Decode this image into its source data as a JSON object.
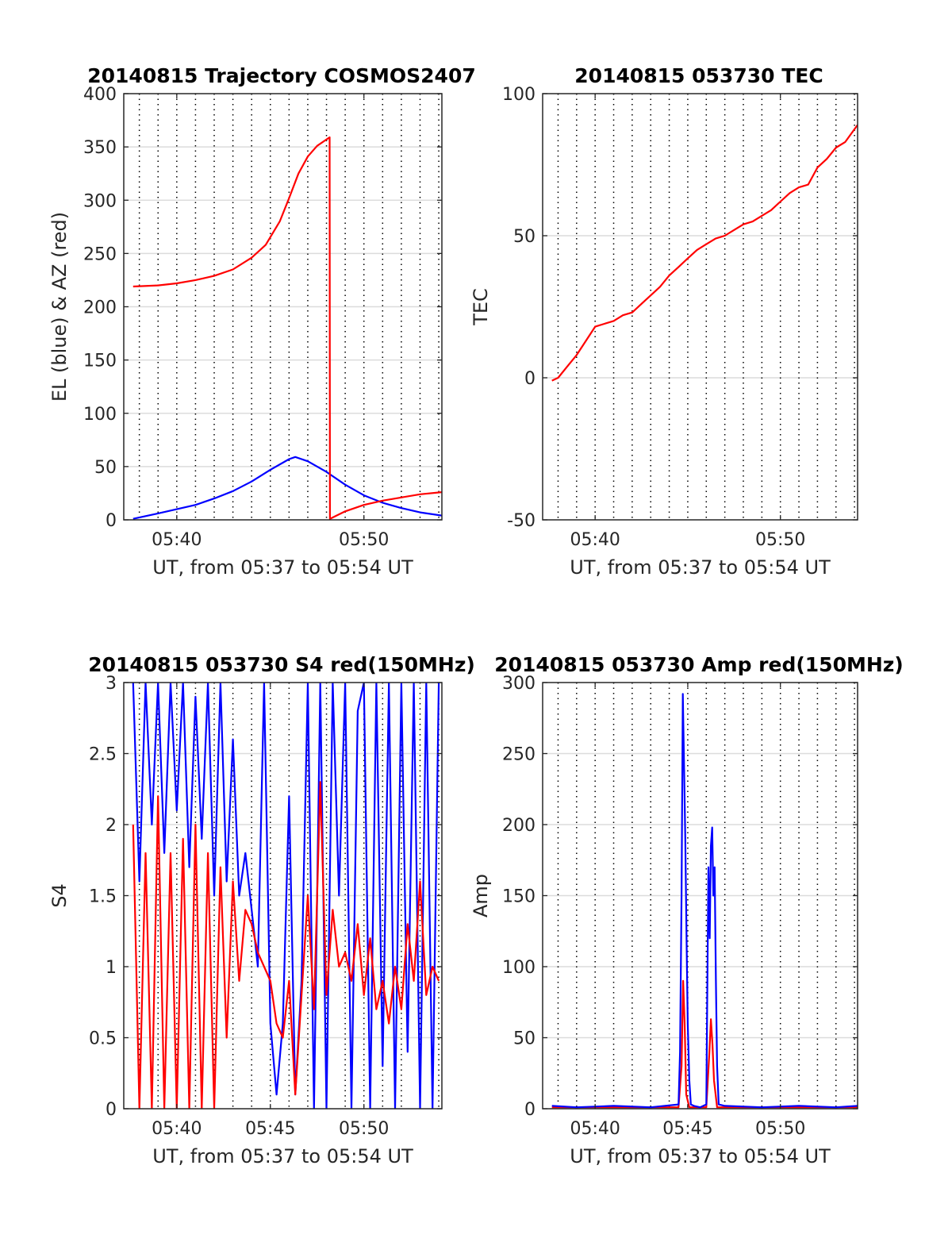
{
  "figure": {
    "background": "#ffffff",
    "colors": {
      "red": "#ff0000",
      "blue": "#0000ff",
      "axis": "#262626",
      "grid": "#dcdcdc",
      "vgrid": "#000000"
    }
  },
  "chart_data": [
    {
      "id": "trajectory",
      "type": "line",
      "title": "20140815 Trajectory COSMOS2407",
      "ylabel": "EL (blue) & AZ (red)",
      "xlabel": "UT, from 05:37 to 05:54 UT",
      "xlim": [
        "05:37:10",
        "05:54:10"
      ],
      "ylim": [
        0,
        400
      ],
      "yticks": [
        0,
        50,
        100,
        150,
        200,
        250,
        300,
        350,
        400
      ],
      "ytick_labels": [
        "0",
        "50",
        "100",
        "150",
        "200",
        "250",
        "300",
        "350",
        "400"
      ],
      "xticks": [
        "05:40",
        "05:50"
      ],
      "xtick_labels": [
        "05:40",
        "05:50"
      ],
      "grid": true,
      "minor_vertical_grid_dotted": true,
      "series": [
        {
          "color": "#0000ff",
          "x": [
            "05:37:40",
            "05:39:00",
            "05:40:00",
            "05:41:00",
            "05:42:00",
            "05:43:00",
            "05:44:00",
            "05:45:00",
            "05:46:00",
            "05:46:20",
            "05:47:00",
            "05:48:00",
            "05:49:00",
            "05:50:00",
            "05:51:00",
            "05:52:00",
            "05:53:00",
            "05:54:10"
          ],
          "y": [
            1,
            6,
            10,
            14,
            20,
            27,
            36,
            47,
            57,
            59,
            55,
            45,
            33,
            23,
            16,
            11,
            7,
            4
          ]
        },
        {
          "color": "#ff0000",
          "x": [
            "05:37:40",
            "05:39:00",
            "05:40:00",
            "05:41:00",
            "05:42:00",
            "05:43:00",
            "05:44:00",
            "05:44:45",
            "05:45:30",
            "05:46:00",
            "05:46:30",
            "05:47:00",
            "05:47:30",
            "05:48:10",
            "05:48:11",
            "05:49:00",
            "05:50:00",
            "05:51:00",
            "05:52:00",
            "05:53:00",
            "05:54:10"
          ],
          "y": [
            219,
            220,
            222,
            225,
            229,
            235,
            246,
            258,
            280,
            302,
            325,
            341,
            351,
            359,
            1,
            8,
            14,
            18,
            21,
            24,
            26
          ]
        }
      ]
    },
    {
      "id": "tec",
      "type": "line",
      "title": "20140815 053730 TEC",
      "ylabel": "TEC",
      "xlabel": "UT, from 05:37 to 05:54 UT",
      "xlim": [
        "05:37:10",
        "05:54:10"
      ],
      "ylim": [
        -50,
        100
      ],
      "yticks": [
        -50,
        0,
        50,
        100
      ],
      "ytick_labels": [
        "-50",
        "0",
        "50",
        "100"
      ],
      "xticks": [
        "05:40",
        "05:50"
      ],
      "xtick_labels": [
        "05:40",
        "05:50"
      ],
      "grid": true,
      "minor_vertical_grid_dotted": true,
      "series": [
        {
          "color": "#ff0000",
          "x": [
            "05:37:40",
            "05:38:00",
            "05:38:30",
            "05:39:00",
            "05:39:30",
            "05:40:00",
            "05:40:30",
            "05:41:00",
            "05:41:30",
            "05:42:00",
            "05:42:30",
            "05:43:00",
            "05:43:30",
            "05:44:00",
            "05:44:30",
            "05:45:00",
            "05:45:30",
            "05:46:00",
            "05:46:30",
            "05:47:00",
            "05:47:30",
            "05:48:00",
            "05:48:30",
            "05:49:00",
            "05:49:30",
            "05:50:00",
            "05:50:30",
            "05:51:00",
            "05:51:30",
            "05:52:00",
            "05:52:30",
            "05:53:00",
            "05:53:30",
            "05:54:10"
          ],
          "y": [
            -1,
            0,
            4,
            8,
            13,
            18,
            19,
            20,
            22,
            23,
            26,
            29,
            32,
            36,
            39,
            42,
            45,
            47,
            49,
            50,
            52,
            54,
            55,
            57,
            59,
            62,
            65,
            67,
            68,
            74,
            77,
            81,
            83,
            89
          ]
        }
      ]
    },
    {
      "id": "s4",
      "type": "line",
      "title": "20140815 053730 S4 red(150MHz)",
      "ylabel": "S4",
      "xlabel": "UT, from 05:37 to 05:54 UT",
      "xlim": [
        "05:37:10",
        "05:54:10"
      ],
      "ylim": [
        0,
        3
      ],
      "yticks": [
        0,
        0.5,
        1,
        1.5,
        2,
        2.5,
        3
      ],
      "ytick_labels": [
        "0",
        "0.5",
        "1",
        "1.5",
        "2",
        "2.5",
        "3"
      ],
      "xticks": [
        "05:40",
        "05:45",
        "05:50"
      ],
      "xtick_labels": [
        "05:40",
        "05:45",
        "05:50"
      ],
      "grid": true,
      "minor_vertical_grid_dotted": true,
      "series": [
        {
          "color": "#0000ff",
          "x": [
            "05:37:40",
            "05:38:00",
            "05:38:20",
            "05:38:40",
            "05:39:00",
            "05:39:20",
            "05:39:40",
            "05:40:00",
            "05:40:20",
            "05:40:40",
            "05:41:00",
            "05:41:20",
            "05:41:40",
            "05:42:00",
            "05:42:20",
            "05:42:40",
            "05:43:00",
            "05:43:20",
            "05:43:40",
            "05:44:00",
            "05:44:20",
            "05:44:40",
            "05:45:00",
            "05:45:20",
            "05:45:40",
            "05:46:00",
            "05:46:20",
            "05:46:40",
            "05:47:00",
            "05:47:20",
            "05:47:40",
            "05:48:00",
            "05:48:20",
            "05:48:40",
            "05:49:00",
            "05:49:20",
            "05:49:40",
            "05:50:00",
            "05:50:20",
            "05:50:40",
            "05:51:00",
            "05:51:20",
            "05:51:40",
            "05:52:00",
            "05:52:20",
            "05:52:40",
            "05:53:00",
            "05:53:20",
            "05:53:40",
            "05:54:00"
          ],
          "y": [
            3.0,
            1.6,
            3.0,
            2.0,
            3.0,
            1.8,
            3.0,
            2.1,
            3.0,
            1.7,
            2.9,
            1.9,
            3.0,
            1.5,
            3.0,
            1.6,
            2.6,
            1.5,
            1.8,
            1.4,
            1.0,
            3.0,
            0.6,
            0.1,
            0.6,
            2.2,
            0.1,
            0.9,
            3.0,
            0.0,
            3.0,
            0.0,
            3.0,
            1.5,
            3.0,
            0.0,
            2.8,
            3.0,
            0.0,
            3.0,
            0.3,
            3.0,
            0.0,
            3.0,
            0.4,
            3.0,
            0.0,
            3.0,
            0.0,
            3.0
          ]
        },
        {
          "color": "#ff0000",
          "x": [
            "05:37:40",
            "05:38:00",
            "05:38:20",
            "05:38:40",
            "05:39:00",
            "05:39:20",
            "05:39:40",
            "05:40:00",
            "05:40:20",
            "05:40:40",
            "05:41:00",
            "05:41:20",
            "05:41:40",
            "05:42:00",
            "05:42:20",
            "05:42:40",
            "05:43:00",
            "05:43:20",
            "05:43:40",
            "05:44:00",
            "05:44:20",
            "05:44:40",
            "05:45:00",
            "05:45:20",
            "05:45:40",
            "05:46:00",
            "05:46:20",
            "05:46:40",
            "05:47:00",
            "05:47:20",
            "05:47:40",
            "05:48:00",
            "05:48:20",
            "05:48:40",
            "05:49:00",
            "05:49:20",
            "05:49:40",
            "05:50:00",
            "05:50:20",
            "05:50:40",
            "05:51:00",
            "05:51:20",
            "05:51:40",
            "05:52:00",
            "05:52:20",
            "05:52:40",
            "05:53:00",
            "05:53:20",
            "05:53:40",
            "05:54:00"
          ],
          "y": [
            2.0,
            0.0,
            1.8,
            0.0,
            2.2,
            0.0,
            1.8,
            0.0,
            1.9,
            0.0,
            2.0,
            0.0,
            1.8,
            0.0,
            1.7,
            0.5,
            1.6,
            0.9,
            1.4,
            1.3,
            1.1,
            1.0,
            0.9,
            0.6,
            0.5,
            0.9,
            0.1,
            0.8,
            1.5,
            0.7,
            2.3,
            0.8,
            1.4,
            1.0,
            1.1,
            0.9,
            1.3,
            0.8,
            1.2,
            0.7,
            0.9,
            0.6,
            1.0,
            0.7,
            1.3,
            0.9,
            1.6,
            0.8,
            1.0,
            0.9
          ]
        }
      ]
    },
    {
      "id": "amp",
      "type": "line",
      "title": "20140815 053730 Amp red(150MHz)",
      "ylabel": "Amp",
      "xlabel": "UT, from 05:37 to 05:54 UT",
      "xlim": [
        "05:37:10",
        "05:54:10"
      ],
      "ylim": [
        0,
        300
      ],
      "yticks": [
        0,
        50,
        100,
        150,
        200,
        250,
        300
      ],
      "ytick_labels": [
        "0",
        "50",
        "100",
        "150",
        "200",
        "250",
        "300"
      ],
      "xticks": [
        "05:40",
        "05:45",
        "05:50"
      ],
      "xtick_labels": [
        "05:40",
        "05:45",
        "05:50"
      ],
      "grid": true,
      "minor_vertical_grid_dotted": true,
      "series": [
        {
          "color": "#ff0000",
          "x": [
            "05:37:40",
            "05:44:30",
            "05:44:40",
            "05:44:45",
            "05:44:50",
            "05:44:55",
            "05:45:05",
            "05:45:20",
            "05:46:00",
            "05:46:05",
            "05:46:10",
            "05:46:15",
            "05:46:20",
            "05:46:25",
            "05:46:35",
            "05:47:00",
            "05:54:10"
          ],
          "y": [
            1,
            1,
            30,
            90,
            60,
            10,
            1,
            1,
            1,
            20,
            40,
            63,
            45,
            20,
            1,
            1,
            1
          ]
        },
        {
          "color": "#0000ff",
          "x": [
            "05:37:40",
            "05:39:00",
            "05:41:00",
            "05:43:00",
            "05:44:30",
            "05:44:35",
            "05:44:40",
            "05:44:44",
            "05:44:48",
            "05:44:52",
            "05:44:56",
            "05:45:00",
            "05:45:05",
            "05:45:10",
            "05:45:20",
            "05:45:40",
            "05:46:00",
            "05:46:03",
            "05:46:07",
            "05:46:11",
            "05:46:15",
            "05:46:19",
            "05:46:23",
            "05:46:27",
            "05:46:31",
            "05:46:35",
            "05:46:40",
            "05:47:00",
            "05:49:00",
            "05:51:00",
            "05:53:00",
            "05:54:10"
          ],
          "y": [
            2,
            1,
            2,
            1,
            3,
            40,
            150,
            292,
            240,
            190,
            120,
            60,
            20,
            3,
            2,
            1,
            3,
            80,
            170,
            120,
            185,
            198,
            150,
            170,
            90,
            30,
            3,
            2,
            1,
            2,
            1,
            2
          ]
        }
      ]
    }
  ]
}
